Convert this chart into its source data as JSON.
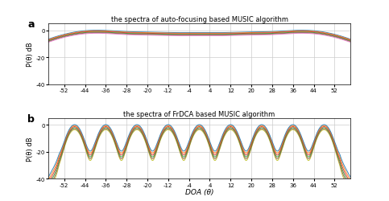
{
  "title_a": "the spectra of auto-focusing based MUSIC algorithm",
  "title_b": "the spectra of FrDCA based MUSIC algorithm",
  "xlabel": "DOA (θ)",
  "ylabel_a": "P(θ) dB",
  "ylabel_b": "P(θ) dB",
  "xlim": [
    -58,
    58
  ],
  "ylim": [
    -40,
    5
  ],
  "xticks": [
    -52,
    -44,
    -36,
    -28,
    -20,
    -12,
    -4,
    4,
    12,
    20,
    28,
    36,
    44,
    52
  ],
  "yticks": [
    0,
    -20,
    -40
  ],
  "signal_doas": [
    -48,
    -36,
    -24,
    -12,
    0,
    12,
    24,
    36,
    48
  ],
  "colors_a": [
    "#1f77b4",
    "#ff7f0e",
    "#d62728",
    "#2ca02c",
    "#8c564b",
    "#e377c2"
  ],
  "colors_b": [
    "#1f77b4",
    "#ff7f0e",
    "#d62728",
    "#2ca02c",
    "#8c564b",
    "#bcbd22"
  ],
  "snr_offsets": [
    0,
    -1.5,
    -3.0,
    -4.5,
    -6.0,
    -7.5
  ],
  "background_color": "#ffffff",
  "grid_color": "#cccccc"
}
